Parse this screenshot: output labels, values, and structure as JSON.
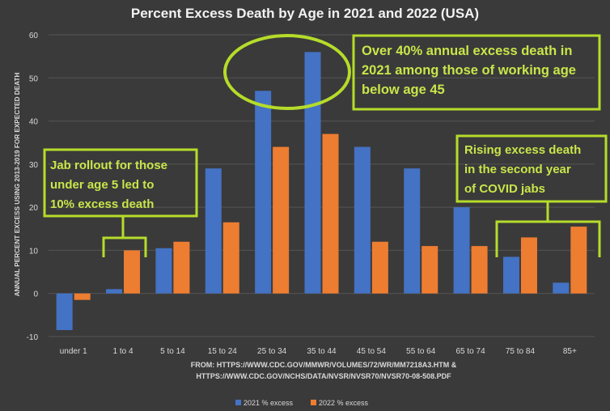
{
  "chart_data": {
    "type": "bar",
    "title": "Percent Excess Death by Age in 2021 and 2022 (USA)",
    "ylabel": "ANNUAL PERCENT EXCESS USING 2013-2019 FOR EXPECTED DEATH",
    "xlabel": "",
    "ylim": [
      -10,
      60
    ],
    "yticks": [
      -10,
      0,
      10,
      20,
      30,
      40,
      50,
      60
    ],
    "grid": true,
    "legend_position": "bottom",
    "categories": [
      "under 1",
      "1 to 4",
      "5 to 14",
      "15 to 24",
      "25 to 34",
      "35 to 44",
      "45 to 54",
      "55 to 64",
      "65 to 74",
      "75 to 84",
      "85+"
    ],
    "series": [
      {
        "name": "2021 % excess",
        "color": "#4472c4",
        "values": [
          -8.5,
          1,
          10.5,
          29,
          47,
          56,
          34,
          29,
          20,
          8.5,
          2.5
        ]
      },
      {
        "name": "2022 % excess",
        "color": "#ed7d31",
        "values": [
          -1.5,
          10,
          12,
          16.5,
          34,
          37,
          12,
          11,
          11,
          13,
          15.5
        ]
      }
    ],
    "source": [
      "FROM: HTTPS://WWW.CDC.GOV/MMWR/VOLUMES/72/WR/MM7218A3.HTM &",
      "HTTPS://WWW.CDC.GOV/NCHS/DATA/NVSR/NVSR70/NVSR70-08-508.PDF"
    ],
    "annotations": [
      {
        "id": "working-age",
        "lines": [
          "Over 40% annual excess death in",
          "2021 among those of working age",
          "below age 45"
        ]
      },
      {
        "id": "jab-rollout",
        "lines": [
          "Jab rollout for those",
          "under age 5 led to",
          "10% excess death"
        ]
      },
      {
        "id": "second-year",
        "lines": [
          "Rising excess death",
          "in the second year",
          "of COVID jabs"
        ]
      }
    ]
  },
  "colors": {
    "background": "#3a3a3a",
    "text": "#d9d9d9",
    "grid": "#555555",
    "highlight": "#b5dc2a",
    "annotation_text": "#c8e64a"
  }
}
